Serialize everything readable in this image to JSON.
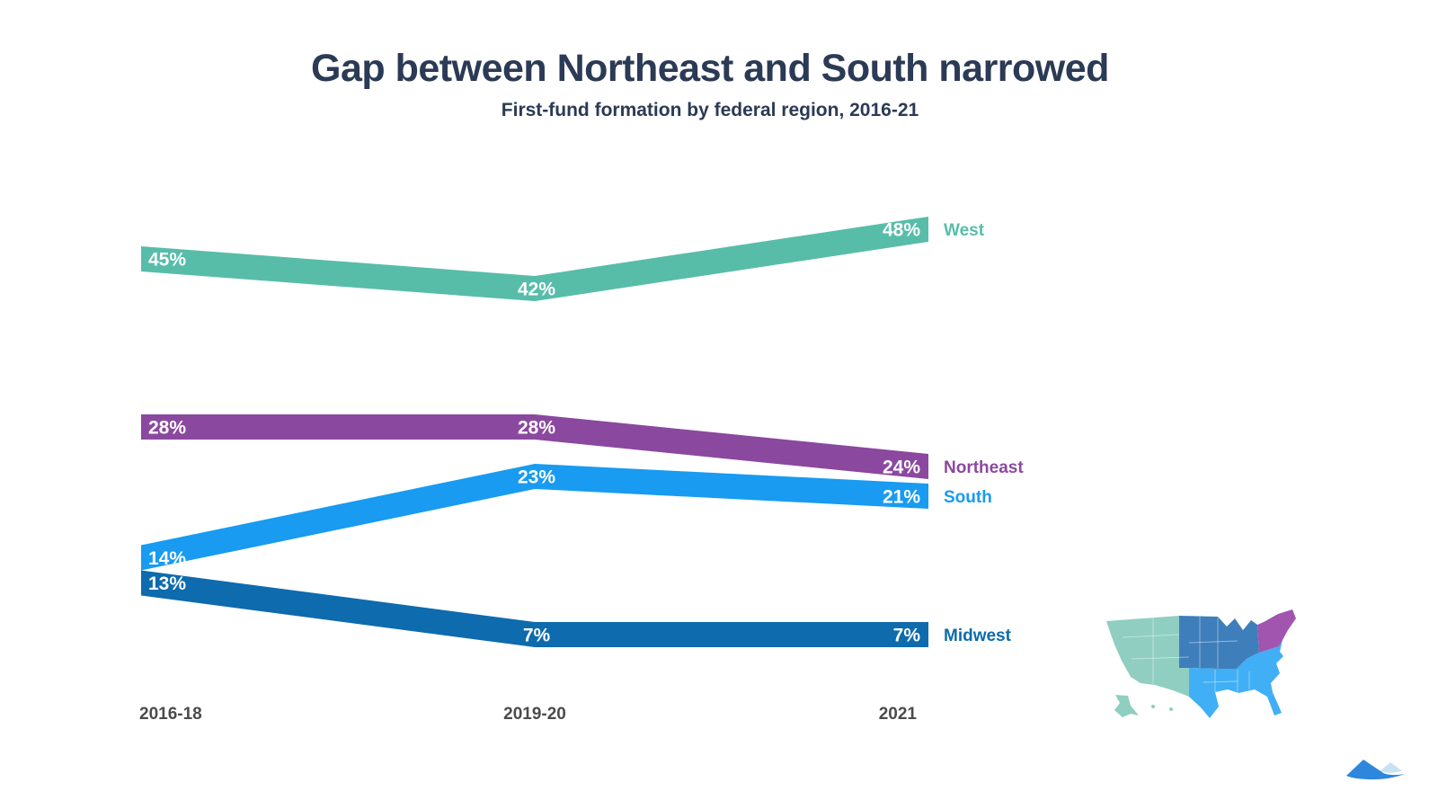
{
  "title": "Gap between Northeast and South narrowed",
  "subtitle": "First-fund formation by federal region, 2016-21",
  "chart_data": {
    "type": "line",
    "style": "ribbon-bump-chart",
    "categories": [
      "2016-18",
      "2019-20",
      "2021"
    ],
    "series": [
      {
        "name": "West",
        "color": "#57BDA9",
        "values": [
          45,
          42,
          48
        ],
        "labels": [
          "45%",
          "42%",
          "48%"
        ]
      },
      {
        "name": "Northeast",
        "color": "#8B489F",
        "values": [
          28,
          28,
          24
        ],
        "labels": [
          "28%",
          "28%",
          "24%"
        ]
      },
      {
        "name": "South",
        "color": "#189BF0",
        "values": [
          14,
          23,
          21
        ],
        "labels": [
          "14%",
          "23%",
          "21%"
        ]
      },
      {
        "name": "Midwest",
        "color": "#0D6BAE",
        "values": [
          13,
          7,
          7
        ],
        "labels": [
          "13%",
          "7%",
          "7%"
        ]
      }
    ],
    "value_suffix": "%",
    "data_labels": true,
    "data_label_color": "#FFFFFF",
    "legend_position": "right-of-line-end",
    "axis_label_color": "#4B4B4D",
    "grid": false
  },
  "map": {
    "name": "us-federal-regions-map",
    "regions": [
      {
        "name": "West",
        "color": "#8FCEC1"
      },
      {
        "name": "Midwest",
        "color": "#3E7EBB"
      },
      {
        "name": "South",
        "color": "#41AFF5"
      },
      {
        "name": "Northeast",
        "color": "#A155AF"
      }
    ]
  },
  "logo": {
    "name": "mountain-logo",
    "primary_color": "#2D87DC",
    "secondary_color": "#C9E2F1"
  }
}
